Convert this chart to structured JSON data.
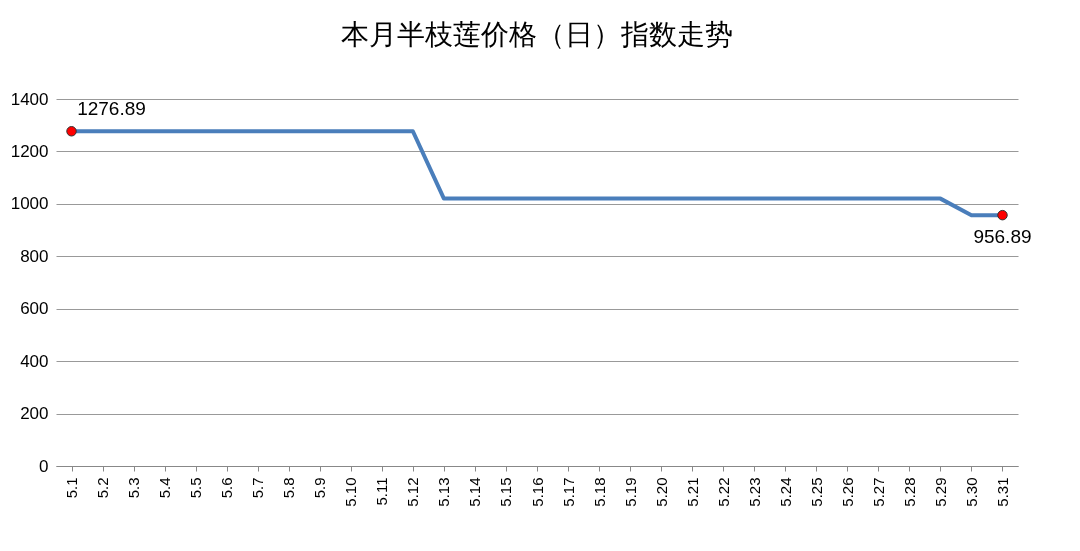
{
  "chart_data": {
    "type": "line",
    "title": "本月半枝莲价格（日）指数走势",
    "categories": [
      "5.1",
      "5.2",
      "5.3",
      "5.4",
      "5.5",
      "5.6",
      "5.7",
      "5.8",
      "5.9",
      "5.10",
      "5.11",
      "5.12",
      "5.13",
      "5.14",
      "5.15",
      "5.16",
      "5.17",
      "5.18",
      "5.19",
      "5.20",
      "5.21",
      "5.22",
      "5.23",
      "5.24",
      "5.25",
      "5.26",
      "5.27",
      "5.28",
      "5.29",
      "5.30",
      "5.31"
    ],
    "series": [
      {
        "color": "#4a7ebb",
        "values": [
          1276.89,
          1276.89,
          1276.89,
          1276.89,
          1276.89,
          1276.89,
          1276.89,
          1276.89,
          1276.89,
          1276.89,
          1276.89,
          1276.89,
          1020,
          1020,
          1020,
          1020,
          1020,
          1020,
          1020,
          1020,
          1020,
          1020,
          1020,
          1020,
          1020,
          1020,
          1020,
          1020,
          1020,
          956.89,
          956.89
        ],
        "value_labels": [
          "1276.89",
          null,
          null,
          null,
          null,
          null,
          null,
          null,
          null,
          null,
          null,
          null,
          null,
          null,
          null,
          null,
          null,
          null,
          null,
          null,
          null,
          null,
          null,
          null,
          null,
          null,
          null,
          null,
          null,
          null,
          "956.89"
        ]
      },
      {
        "type": "scatter",
        "color": "#ff0000",
        "marker": "circle",
        "x": [
          "5.1",
          "5.31"
        ],
        "values": [
          1276.89,
          956.89
        ]
      }
    ],
    "ylim": [
      0,
      1400
    ],
    "yticks": [
      0,
      200,
      400,
      600,
      800,
      1000,
      1200,
      1400
    ],
    "grid": "y"
  }
}
